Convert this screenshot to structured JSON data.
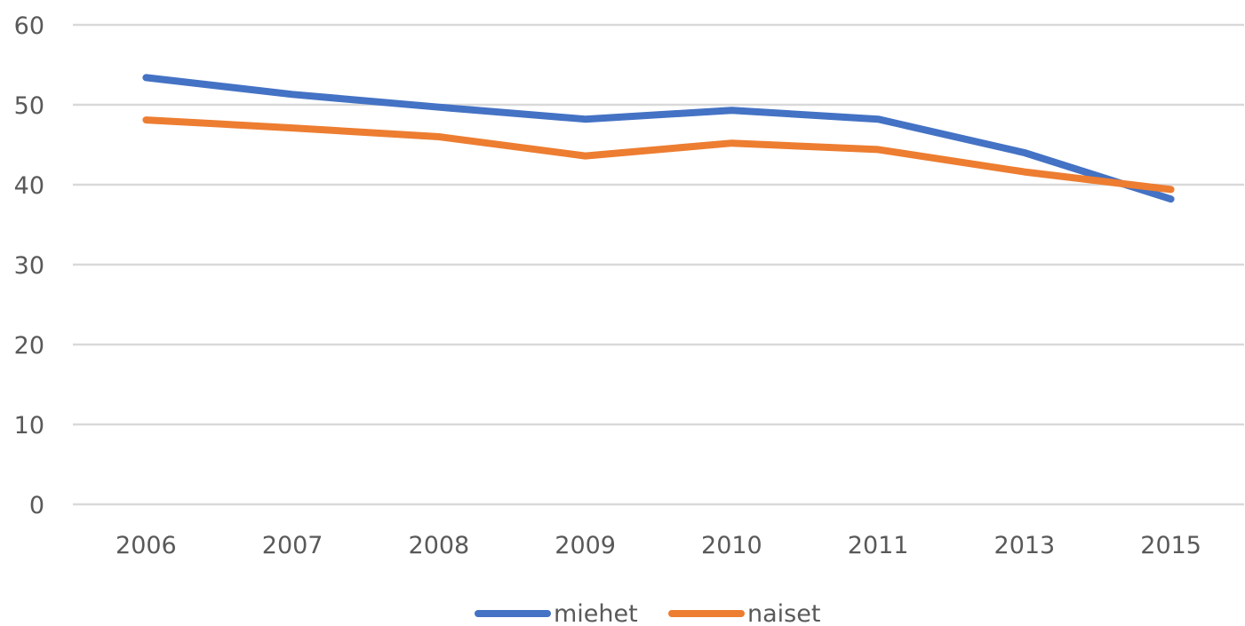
{
  "chart_data": {
    "type": "line",
    "categories": [
      "2006",
      "2007",
      "2008",
      "2009",
      "2010",
      "2011",
      "2013",
      "2015"
    ],
    "series": [
      {
        "name": "miehet",
        "color": "#4472c4",
        "values": [
          53.4,
          51.3,
          49.7,
          48.2,
          49.3,
          48.2,
          44.0,
          38.2
        ]
      },
      {
        "name": "naiset",
        "color": "#ed7d31",
        "values": [
          48.1,
          47.1,
          46.0,
          43.6,
          45.2,
          44.4,
          41.6,
          39.4
        ]
      }
    ],
    "ylim": [
      0,
      60
    ],
    "yticks": [
      0,
      10,
      20,
      30,
      40,
      50,
      60
    ],
    "grid": true,
    "legend_position": "bottom"
  }
}
